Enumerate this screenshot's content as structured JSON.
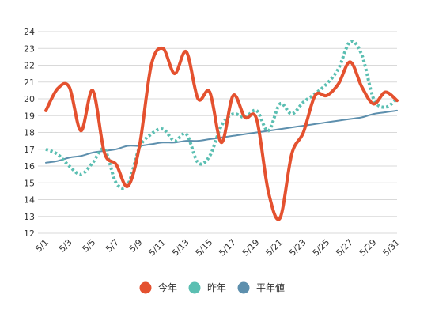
{
  "chart_data": {
    "type": "line",
    "title": "",
    "xlabel": "",
    "ylabel": "",
    "ylim": [
      12,
      24
    ],
    "yticks": [
      12,
      13,
      14,
      15,
      16,
      17,
      18,
      19,
      20,
      21,
      22,
      23,
      24
    ],
    "grid": true,
    "legend_position": "bottom",
    "x": [
      "5/1",
      "5/2",
      "5/3",
      "5/4",
      "5/5",
      "5/6",
      "5/7",
      "5/8",
      "5/9",
      "5/10",
      "5/11",
      "5/12",
      "5/13",
      "5/14",
      "5/15",
      "5/16",
      "5/17",
      "5/18",
      "5/19",
      "5/20",
      "5/21",
      "5/22",
      "5/23",
      "5/24",
      "5/25",
      "5/26",
      "5/27",
      "5/28",
      "5/29",
      "5/30",
      "5/31"
    ],
    "x_tick_labels": [
      "5/1",
      "5/3",
      "5/5",
      "5/7",
      "5/9",
      "5/11",
      "5/13",
      "5/15",
      "5/17",
      "5/19",
      "5/21",
      "5/23",
      "5/25",
      "5/27",
      "5/29",
      "5/31"
    ],
    "series": [
      {
        "name": "今年",
        "color": "#e4512f",
        "style": "solid",
        "values": [
          19.3,
          20.6,
          20.7,
          18.1,
          20.5,
          16.8,
          16.1,
          14.8,
          17.2,
          22.0,
          23.0,
          21.5,
          22.8,
          20.0,
          20.4,
          17.4,
          20.2,
          18.9,
          18.8,
          14.5,
          12.9,
          16.7,
          18.0,
          20.2,
          20.2,
          20.9,
          22.2,
          20.7,
          19.7,
          20.4,
          19.9
        ]
      },
      {
        "name": "昨年",
        "color": "#5bbfb2",
        "style": "dotted",
        "values": [
          17.0,
          16.7,
          16.0,
          15.5,
          16.2,
          17.0,
          15.0,
          14.9,
          17.1,
          17.9,
          18.2,
          17.5,
          17.9,
          16.2,
          16.6,
          18.4,
          19.1,
          18.9,
          19.3,
          18.1,
          19.7,
          19.1,
          19.8,
          20.3,
          20.9,
          21.8,
          23.4,
          22.6,
          20.0,
          19.5,
          20.0
        ]
      },
      {
        "name": "平年値",
        "color": "#5d8fad",
        "style": "solid",
        "values": [
          16.2,
          16.3,
          16.5,
          16.6,
          16.8,
          16.9,
          17.0,
          17.2,
          17.2,
          17.3,
          17.4,
          17.4,
          17.5,
          17.5,
          17.6,
          17.7,
          17.8,
          17.9,
          18.0,
          18.1,
          18.2,
          18.3,
          18.4,
          18.5,
          18.6,
          18.7,
          18.8,
          18.9,
          19.1,
          19.2,
          19.3
        ]
      }
    ]
  }
}
